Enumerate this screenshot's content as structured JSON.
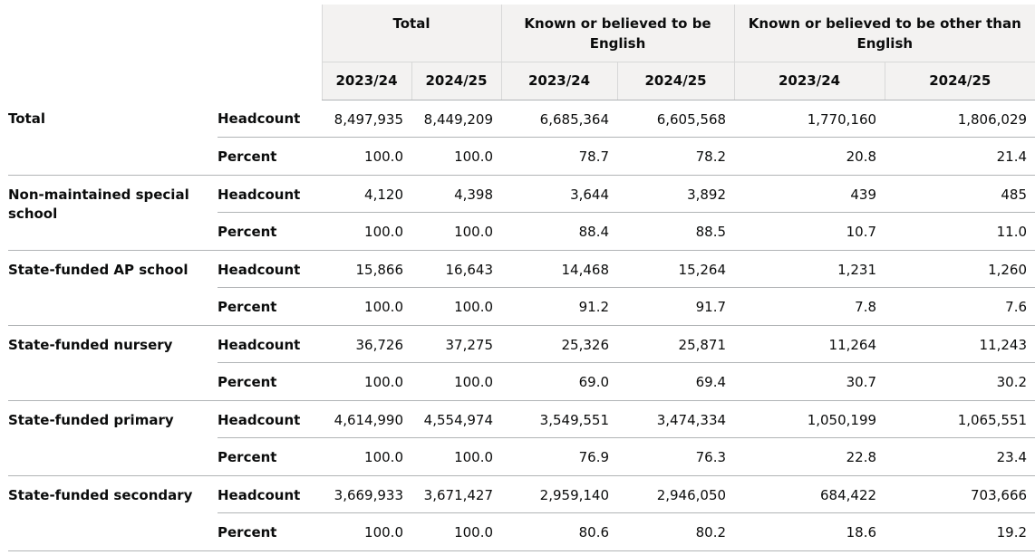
{
  "table": {
    "header": {
      "groups": [
        {
          "label": "Total",
          "years": [
            "2023/24",
            "2024/25"
          ]
        },
        {
          "label": "Known or believed to be English",
          "years": [
            "2023/24",
            "2024/25"
          ]
        },
        {
          "label": "Known or believed to be other than English",
          "years": [
            "2023/24",
            "2024/25"
          ]
        }
      ]
    },
    "groups": [
      {
        "name": "Total",
        "rows": [
          {
            "measure": "Headcount",
            "values": [
              "8,497,935",
              "8,449,209",
              "6,685,364",
              "6,605,568",
              "1,770,160",
              "1,806,029"
            ]
          },
          {
            "measure": "Percent",
            "values": [
              "100.0",
              "100.0",
              "78.7",
              "78.2",
              "20.8",
              "21.4"
            ]
          }
        ]
      },
      {
        "name": "Non-maintained special school",
        "rows": [
          {
            "measure": "Headcount",
            "values": [
              "4,120",
              "4,398",
              "3,644",
              "3,892",
              "439",
              "485"
            ]
          },
          {
            "measure": "Percent",
            "values": [
              "100.0",
              "100.0",
              "88.4",
              "88.5",
              "10.7",
              "11.0"
            ]
          }
        ]
      },
      {
        "name": "State-funded AP school",
        "rows": [
          {
            "measure": "Headcount",
            "values": [
              "15,866",
              "16,643",
              "14,468",
              "15,264",
              "1,231",
              "1,260"
            ]
          },
          {
            "measure": "Percent",
            "values": [
              "100.0",
              "100.0",
              "91.2",
              "91.7",
              "7.8",
              "7.6"
            ]
          }
        ]
      },
      {
        "name": "State-funded nursery",
        "rows": [
          {
            "measure": "Headcount",
            "values": [
              "36,726",
              "37,275",
              "25,326",
              "25,871",
              "11,264",
              "11,243"
            ]
          },
          {
            "measure": "Percent",
            "values": [
              "100.0",
              "100.0",
              "69.0",
              "69.4",
              "30.7",
              "30.2"
            ]
          }
        ]
      },
      {
        "name": "State-funded primary",
        "rows": [
          {
            "measure": "Headcount",
            "values": [
              "4,614,990",
              "4,554,974",
              "3,549,551",
              "3,474,334",
              "1,050,199",
              "1,065,551"
            ]
          },
          {
            "measure": "Percent",
            "values": [
              "100.0",
              "100.0",
              "76.9",
              "76.3",
              "22.8",
              "23.4"
            ]
          }
        ]
      },
      {
        "name": "State-funded secondary",
        "rows": [
          {
            "measure": "Headcount",
            "values": [
              "3,669,933",
              "3,671,427",
              "2,959,140",
              "2,946,050",
              "684,422",
              "703,666"
            ]
          },
          {
            "measure": "Percent",
            "values": [
              "100.0",
              "100.0",
              "80.6",
              "80.2",
              "18.6",
              "19.2"
            ]
          }
        ]
      }
    ]
  }
}
